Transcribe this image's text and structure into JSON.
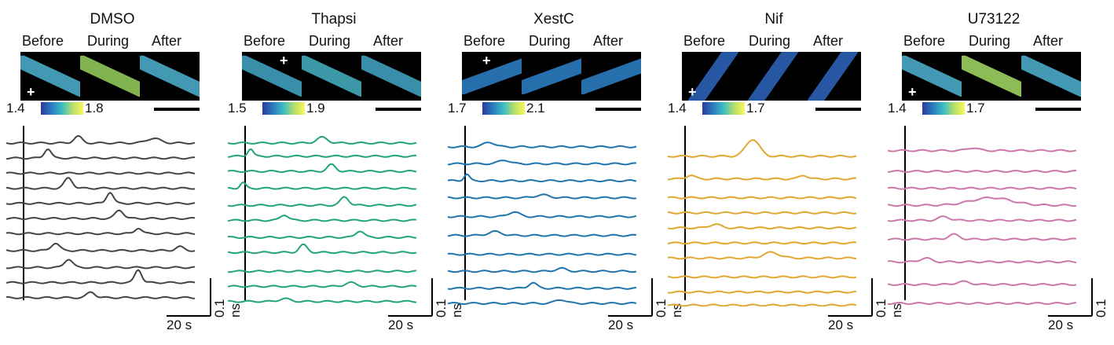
{
  "colormap": [
    "#2b3b9e",
    "#2a7bbf",
    "#3bbcc4",
    "#b6df6a",
    "#fdf55a"
  ],
  "image_labels": [
    "Before",
    "During",
    "After"
  ],
  "time_scale_label": "20 s",
  "amp_scale_label": "0.1 ns",
  "panels": [
    {
      "title": "DMSO",
      "color": "#444444",
      "cmin": "1.4",
      "cmax": "1.8",
      "img_tints": [
        "#4aa8c8",
        "#8fc85a",
        "#4aa8c8"
      ],
      "traces": [
        {
          "base": 0.05,
          "peaks": [
            [
              0.38,
              0.35,
              0.03
            ],
            [
              0.78,
              0.25,
              0.05
            ]
          ]
        },
        {
          "base": 0.13,
          "peaks": [
            [
              0.22,
              0.5,
              0.025
            ]
          ]
        },
        {
          "base": 0.21,
          "peaks": [
            [
              0.0,
              0.0,
              0.01
            ]
          ]
        },
        {
          "base": 0.29,
          "peaks": [
            [
              0.33,
              0.55,
              0.03
            ]
          ]
        },
        {
          "base": 0.37,
          "peaks": [
            [
              0.55,
              0.6,
              0.025
            ]
          ]
        },
        {
          "base": 0.45,
          "peaks": [
            [
              0.6,
              0.45,
              0.03
            ]
          ]
        },
        {
          "base": 0.53,
          "peaks": [
            [
              0.7,
              0.3,
              0.025
            ]
          ]
        },
        {
          "base": 0.62,
          "peaks": [
            [
              0.26,
              0.4,
              0.03
            ],
            [
              0.92,
              0.2,
              0.03
            ]
          ]
        },
        {
          "base": 0.71,
          "peaks": [
            [
              0.33,
              0.45,
              0.03
            ]
          ]
        },
        {
          "base": 0.79,
          "peaks": [
            [
              0.7,
              0.7,
              0.025
            ]
          ]
        },
        {
          "base": 0.87,
          "peaks": [
            [
              0.45,
              0.3,
              0.03
            ]
          ]
        }
      ]
    },
    {
      "title": "Thapsi",
      "color": "#22a37f",
      "cmin": "1.5",
      "cmax": "1.9",
      "img_tints": [
        "#3f9fbd",
        "#42a9b8",
        "#3f9fbd"
      ],
      "traces": [
        {
          "base": 0.05,
          "peaks": [
            [
              0.5,
              0.3,
              0.04
            ]
          ]
        },
        {
          "base": 0.12,
          "peaks": [
            [
              0.12,
              0.4,
              0.02
            ]
          ]
        },
        {
          "base": 0.2,
          "peaks": [
            [
              0.55,
              0.35,
              0.03
            ]
          ]
        },
        {
          "base": 0.29,
          "peaks": [
            [
              0.08,
              0.3,
              0.02
            ]
          ]
        },
        {
          "base": 0.38,
          "peaks": [
            [
              0.62,
              0.45,
              0.03
            ]
          ]
        },
        {
          "base": 0.46,
          "peaks": [
            [
              0.3,
              0.3,
              0.03
            ]
          ]
        },
        {
          "base": 0.55,
          "peaks": [
            [
              0.7,
              0.35,
              0.03
            ]
          ]
        },
        {
          "base": 0.63,
          "peaks": [
            [
              0.4,
              0.4,
              0.03
            ]
          ]
        },
        {
          "base": 0.73,
          "peaks": [
            [
              0.0,
              0.0,
              0.01
            ]
          ]
        },
        {
          "base": 0.81,
          "peaks": [
            [
              0.65,
              0.2,
              0.04
            ]
          ]
        },
        {
          "base": 0.89,
          "peaks": [
            [
              0.3,
              0.15,
              0.04
            ]
          ]
        }
      ]
    },
    {
      "title": "XestC",
      "color": "#1f74ab",
      "cmin": "1.7",
      "cmax": "2.1",
      "img_tints": [
        "#2a7bbf",
        "#2a7bbf",
        "#2a7bbf"
      ],
      "traces": [
        {
          "base": 0.07,
          "peaks": [
            [
              0.22,
              0.25,
              0.04
            ]
          ]
        },
        {
          "base": 0.16,
          "peaks": [
            [
              0.3,
              0.2,
              0.04
            ]
          ]
        },
        {
          "base": 0.25,
          "peaks": [
            [
              0.1,
              0.35,
              0.02
            ]
          ]
        },
        {
          "base": 0.34,
          "peaks": [
            [
              0.5,
              0.15,
              0.05
            ]
          ]
        },
        {
          "base": 0.44,
          "peaks": [
            [
              0.35,
              0.25,
              0.04
            ]
          ]
        },
        {
          "base": 0.54,
          "peaks": [
            [
              0.25,
              0.2,
              0.05
            ]
          ]
        },
        {
          "base": 0.64,
          "peaks": [
            [
              0.0,
              0.0,
              0.01
            ]
          ]
        },
        {
          "base": 0.73,
          "peaks": [
            [
              0.6,
              0.15,
              0.04
            ]
          ]
        },
        {
          "base": 0.82,
          "peaks": [
            [
              0.45,
              0.3,
              0.03
            ]
          ]
        },
        {
          "base": 0.9,
          "peaks": [
            [
              0.6,
              0.2,
              0.04
            ]
          ]
        }
      ]
    },
    {
      "title": "Nif",
      "color": "#e0a830",
      "cmin": "1.4",
      "cmax": "1.7",
      "img_tints": [
        "#2b5fb5",
        "#2b5fb5",
        "#2b5fb5"
      ],
      "traces": [
        {
          "base": 0.12,
          "peaks": [
            [
              0.45,
              0.9,
              0.05
            ]
          ]
        },
        {
          "base": 0.24,
          "peaks": [
            [
              0.12,
              0.2,
              0.03
            ],
            [
              0.72,
              0.2,
              0.03
            ]
          ]
        },
        {
          "base": 0.34,
          "peaks": [
            [
              0.0,
              0.0,
              0.01
            ]
          ]
        },
        {
          "base": 0.42,
          "peaks": [
            [
              0.0,
              0.0,
              0.01
            ]
          ]
        },
        {
          "base": 0.5,
          "peaks": [
            [
              0.25,
              0.2,
              0.04
            ]
          ]
        },
        {
          "base": 0.58,
          "peaks": [
            [
              0.0,
              0.0,
              0.01
            ]
          ]
        },
        {
          "base": 0.66,
          "peaks": [
            [
              0.55,
              0.3,
              0.06
            ]
          ]
        },
        {
          "base": 0.76,
          "peaks": [
            [
              0.0,
              0.0,
              0.01
            ]
          ]
        },
        {
          "base": 0.84,
          "peaks": [
            [
              0.0,
              0.0,
              0.01
            ]
          ]
        },
        {
          "base": 0.91,
          "peaks": [
            [
              0.0,
              0.0,
              0.01
            ]
          ]
        }
      ]
    },
    {
      "title": "U73122",
      "color": "#cc77aa",
      "cmin": "1.4",
      "cmax": "1.7",
      "img_tints": [
        "#4aa8c8",
        "#9ccf5f",
        "#4aa8c8"
      ],
      "traces": [
        {
          "base": 0.09,
          "peaks": [
            [
              0.45,
              0.15,
              0.04
            ]
          ]
        },
        {
          "base": 0.2,
          "peaks": [
            [
              0.0,
              0.0,
              0.01
            ]
          ]
        },
        {
          "base": 0.29,
          "peaks": [
            [
              0.0,
              0.0,
              0.01
            ]
          ]
        },
        {
          "base": 0.38,
          "peaks": [
            [
              0.55,
              0.4,
              0.15
            ]
          ]
        },
        {
          "base": 0.46,
          "peaks": [
            [
              0.3,
              0.2,
              0.04
            ]
          ]
        },
        {
          "base": 0.56,
          "peaks": [
            [
              0.35,
              0.25,
              0.04
            ]
          ]
        },
        {
          "base": 0.68,
          "peaks": [
            [
              0.2,
              0.2,
              0.04
            ]
          ]
        },
        {
          "base": 0.8,
          "peaks": [
            [
              0.4,
              0.15,
              0.05
            ]
          ]
        },
        {
          "base": 0.9,
          "peaks": [
            [
              0.0,
              0.0,
              0.01
            ]
          ]
        }
      ]
    }
  ]
}
